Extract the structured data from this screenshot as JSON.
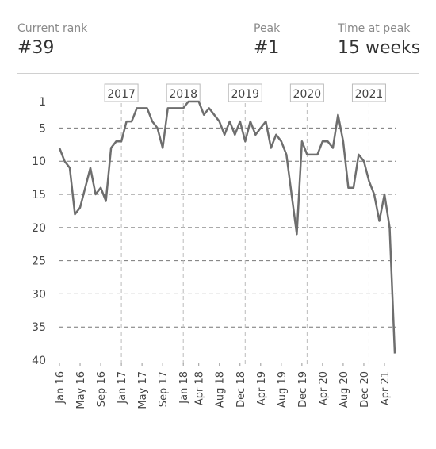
{
  "stats": [
    {
      "label": "Current rank",
      "value": "#39"
    },
    {
      "label": "Peak",
      "value": "#1"
    },
    {
      "label": "Time at peak",
      "value": "15 weeks"
    }
  ],
  "chart_data": {
    "type": "line",
    "x": [
      "2016-01",
      "2016-02",
      "2016-03",
      "2016-04",
      "2016-05",
      "2016-06",
      "2016-07",
      "2016-08",
      "2016-09",
      "2016-10",
      "2016-11",
      "2016-12",
      "2017-01",
      "2017-02",
      "2017-03",
      "2017-04",
      "2017-05",
      "2017-06",
      "2017-07",
      "2017-08",
      "2017-09",
      "2017-10",
      "2017-11",
      "2017-12",
      "2018-01",
      "2018-02",
      "2018-03",
      "2018-04",
      "2018-05",
      "2018-06",
      "2018-07",
      "2018-08",
      "2018-09",
      "2018-10",
      "2018-11",
      "2018-12",
      "2019-01",
      "2019-02",
      "2019-03",
      "2019-04",
      "2019-05",
      "2019-06",
      "2019-07",
      "2019-08",
      "2019-09",
      "2019-10",
      "2019-11",
      "2019-12",
      "2020-01",
      "2020-02",
      "2020-03",
      "2020-04",
      "2020-05",
      "2020-06",
      "2020-07",
      "2020-08",
      "2020-09",
      "2020-10",
      "2020-11",
      "2020-12",
      "2021-01",
      "2021-02",
      "2021-03",
      "2021-04",
      "2021-05",
      "2021-06"
    ],
    "series": [
      {
        "color": "#6e6e6e",
        "values": [
          8,
          10,
          11,
          18,
          17,
          14,
          11,
          15,
          14,
          16,
          8,
          7,
          7,
          4,
          4,
          2,
          2,
          2,
          4,
          5,
          8,
          2,
          2,
          2,
          2,
          1,
          1,
          1,
          3,
          2,
          3,
          4,
          6,
          4,
          6,
          4,
          7,
          4,
          6,
          5,
          4,
          8,
          6,
          7,
          9,
          15,
          21,
          7,
          9,
          9,
          9,
          7,
          7,
          8,
          3,
          7,
          14,
          14,
          9,
          10,
          13,
          15,
          19,
          15,
          20,
          39
        ]
      }
    ],
    "xlim": [
      "2016-01",
      "2021-06"
    ],
    "xticks": [
      {
        "value": "2016-01",
        "label": "Jan 16"
      },
      {
        "value": "2016-05",
        "label": "May 16"
      },
      {
        "value": "2016-09",
        "label": "Sep 16"
      },
      {
        "value": "2017-01",
        "label": "Jan 17"
      },
      {
        "value": "2017-05",
        "label": "May 17"
      },
      {
        "value": "2017-09",
        "label": "Sep 17"
      },
      {
        "value": "2018-01",
        "label": "Jan 18"
      },
      {
        "value": "2018-04",
        "label": "Apr 18"
      },
      {
        "value": "2018-08",
        "label": "Aug 18"
      },
      {
        "value": "2018-12",
        "label": "Dec 18"
      },
      {
        "value": "2019-04",
        "label": "Apr 19"
      },
      {
        "value": "2019-08",
        "label": "Aug 19"
      },
      {
        "value": "2019-12",
        "label": "Dec 19"
      },
      {
        "value": "2020-04",
        "label": "Apr 20"
      },
      {
        "value": "2020-08",
        "label": "Aug 20"
      },
      {
        "value": "2020-12",
        "label": "Dec 20"
      },
      {
        "value": "2021-04",
        "label": "Apr 21"
      }
    ],
    "year_markers": [
      {
        "value": "2017-01",
        "label": "2017"
      },
      {
        "value": "2018-01",
        "label": "2018"
      },
      {
        "value": "2019-01",
        "label": "2019"
      },
      {
        "value": "2020-01",
        "label": "2020"
      },
      {
        "value": "2021-01",
        "label": "2021"
      }
    ],
    "ylim": [
      1,
      40
    ],
    "yticks": [
      1,
      5,
      10,
      15,
      20,
      25,
      30,
      35,
      40
    ],
    "y_inverted": true,
    "grid": true
  }
}
